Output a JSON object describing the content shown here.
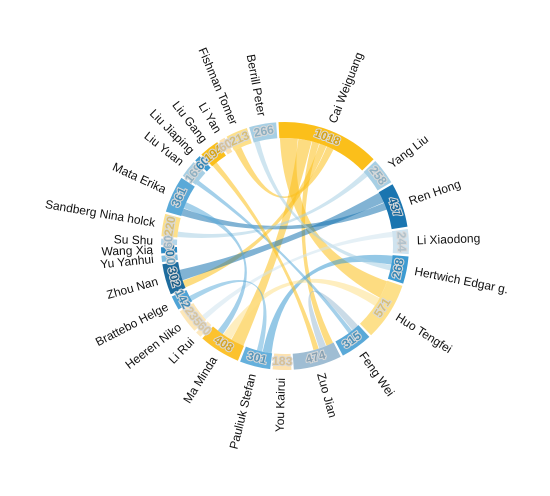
{
  "chart_data": {
    "type": "chord",
    "start_angle": -3,
    "nodes": [
      {
        "name": "Cai Weiguang",
        "value": 1018,
        "color": "#fbbf1a"
      },
      {
        "name": "Yang Liu",
        "value": 258,
        "color": "#a7cfe4"
      },
      {
        "name": "Ren Hong",
        "value": 437,
        "color": "#1a75b0"
      },
      {
        "name": "Li Xiaodong",
        "value": 244,
        "color": "#cfe3ef"
      },
      {
        "name": "Hertwich Edgar g.",
        "value": 268,
        "color": "#3d9bd2"
      },
      {
        "name": "Huo Tengfei",
        "value": 571,
        "color": "#fde08a"
      },
      {
        "name": "Feng Wei",
        "value": 315,
        "color": "#5aa9d8"
      },
      {
        "name": "Zuo Jian",
        "value": 474,
        "color": "#9fbdd3"
      },
      {
        "name": "You Kairui",
        "value": 183,
        "color": "#fde2b0"
      },
      {
        "name": "Pauliuk Stefan",
        "value": 301,
        "color": "#65b0dc"
      },
      {
        "name": "Ma Minda",
        "value": 408,
        "color": "#fcc22e"
      },
      {
        "name": "Li Rui",
        "value": 60,
        "color": "#fde9bf"
      },
      {
        "name": "Heeren Niko",
        "value": 235,
        "color": "#fde7b8"
      },
      {
        "name": "Brattebo Helge",
        "value": 142,
        "color": "#4fa3d6"
      },
      {
        "name": "Zhou Nan",
        "value": 302,
        "color": "#1e6c9e"
      },
      {
        "name": "Yu Yanhui",
        "value": 60,
        "color": "#7fbde0"
      },
      {
        "name": "Wang Xia",
        "value": 60,
        "color": "#2e8bc5"
      },
      {
        "name": "Su Shu",
        "value": 60,
        "color": "#b4d6ea"
      },
      {
        "name": "Sandberg Nina holck",
        "value": 220,
        "color": "#fde08a"
      },
      {
        "name": "Mata Erika",
        "value": 361,
        "color": "#5aa9d8"
      },
      {
        "name": "Liu Yuan",
        "value": 169,
        "color": "#a7cfe4"
      },
      {
        "name": "Liu Jiaping",
        "value": 60,
        "color": "#3d9bd2"
      },
      {
        "name": "Liu Gang",
        "value": 194,
        "color": "#fbbf1a"
      },
      {
        "name": "Li Yan",
        "value": 60,
        "color": "#fde2b0"
      },
      {
        "name": "Fishman Tomer",
        "value": 213,
        "color": "#fde08a"
      },
      {
        "name": "Berrill Peter",
        "value": 266,
        "color": "#a7cfe4"
      }
    ],
    "links": [
      {
        "source": "Cai Weiguang",
        "target": "Huo Tengfei",
        "value": 200
      },
      {
        "source": "Cai Weiguang",
        "target": "Ma Minda",
        "value": 150
      },
      {
        "source": "Cai Weiguang",
        "target": "Zuo Jian",
        "value": 80
      },
      {
        "source": "Cai Weiguang",
        "target": "Zhou Nan",
        "value": 80
      },
      {
        "source": "Cai Weiguang",
        "target": "Fishman Tomer",
        "value": 80
      },
      {
        "source": "Ren Hong",
        "target": "Zhou Nan",
        "value": 120
      },
      {
        "source": "Ren Hong",
        "target": "Mata Erika",
        "value": 80
      },
      {
        "source": "Hertwich Edgar g.",
        "target": "Pauliuk Stefan",
        "value": 100
      },
      {
        "source": "Berrill Peter",
        "target": "Hertwich Edgar g.",
        "value": 60
      },
      {
        "source": "Zuo Jian",
        "target": "Feng Wei",
        "value": 80
      },
      {
        "source": "Huo Tengfei",
        "target": "Ma Minda",
        "value": 100
      },
      {
        "source": "Yang Liu",
        "target": "Sandberg Nina holck",
        "value": 60
      },
      {
        "source": "Li Xiaodong",
        "target": "Heeren Niko",
        "value": 60
      },
      {
        "source": "Feng Wei",
        "target": "Liu Yuan",
        "value": 50
      },
      {
        "source": "Pauliuk Stefan",
        "target": "Brattebo Helge",
        "value": 60
      },
      {
        "source": "Mata Erika",
        "target": "Ma Minda",
        "value": 70
      },
      {
        "source": "Liu Gang",
        "target": "Zuo Jian",
        "value": 60
      }
    ]
  }
}
